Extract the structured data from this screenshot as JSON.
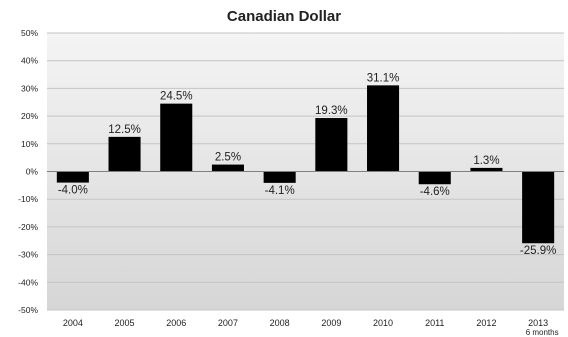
{
  "chart_data": {
    "type": "bar",
    "title": "Canadian Dollar",
    "categories": [
      "2004",
      "2005",
      "2006",
      "2007",
      "2008",
      "2009",
      "2010",
      "2011",
      "2012",
      "2013"
    ],
    "category_sublabels": [
      "",
      "",
      "",
      "",
      "",
      "",
      "",
      "",
      "",
      "6 months"
    ],
    "values": [
      -4.0,
      12.5,
      24.5,
      2.5,
      -4.1,
      19.3,
      31.1,
      -4.6,
      1.3,
      -25.9
    ],
    "data_labels": [
      "-4.0%",
      "12.5%",
      "24.5%",
      "2.5%",
      "-4.1%",
      "19.3%",
      "31.1%",
      "-4.6%",
      "1.3%",
      "-25.9%"
    ],
    "yticks": [
      50,
      40,
      30,
      20,
      10,
      0,
      -10,
      -20,
      -30,
      -40,
      -50
    ],
    "ytick_labels": [
      "50%",
      "40%",
      "30%",
      "20%",
      "10%",
      "0%",
      "-10%",
      "-20%",
      "-30%",
      "-40%",
      "-50%"
    ],
    "ylim": [
      -50,
      50
    ],
    "grid": true,
    "legend": "none",
    "colors": {
      "bar": "#000000",
      "plot_top": "#f4f4f4",
      "plot_bottom": "#d6d6d6",
      "gridline": "#c4c4c4",
      "zero_line": "#7f7f7f",
      "text": "#222222"
    }
  }
}
